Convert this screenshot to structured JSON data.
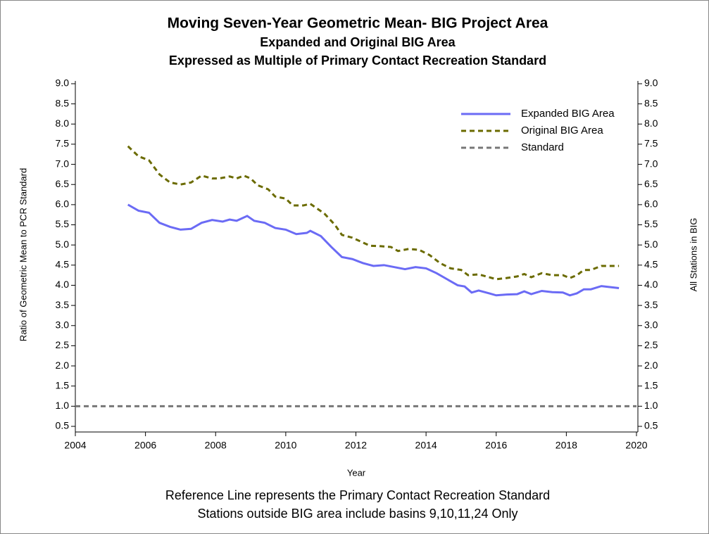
{
  "chart_data": {
    "type": "line",
    "title": "Moving Seven-Year Geometric Mean- BIG Project Area",
    "subtitles": [
      "Expanded and  Original BIG Area",
      "Expressed as Multiple of Primary Contact Recreation Standard"
    ],
    "xlabel": "Year",
    "ylabel": "Ratio of Geometric Mean to PCR Standard",
    "y2label": "All Stations in BIG",
    "footnotes": [
      "Reference Line represents the Primary Contact Recreation Standard",
      "Stations outside BIG area include basins 9,10,11,24 Only"
    ],
    "xlim": [
      2004,
      2020
    ],
    "xticks": [
      2004,
      2006,
      2008,
      2010,
      2012,
      2014,
      2016,
      2018,
      2020
    ],
    "ylim": [
      0.5,
      9
    ],
    "yticks": [
      {
        "value": 0.5,
        "label": "0.5"
      },
      {
        "value": 1,
        "label": "1.0"
      },
      {
        "value": 1.5,
        "label": "1.5"
      },
      {
        "value": 2,
        "label": "2.0"
      },
      {
        "value": 2.5,
        "label": "2.5"
      },
      {
        "value": 3,
        "label": "3.0"
      },
      {
        "value": 3.5,
        "label": "3.5"
      },
      {
        "value": 4,
        "label": "4.0"
      },
      {
        "value": 4.5,
        "label": "4.5"
      },
      {
        "value": 5,
        "label": "5.0"
      },
      {
        "value": 5.5,
        "label": "5.5"
      },
      {
        "value": 6,
        "label": "6.0"
      },
      {
        "value": 6.5,
        "label": "6.5"
      },
      {
        "value": 7,
        "label": "7.0"
      },
      {
        "value": 7.5,
        "label": "7.5"
      },
      {
        "value": 8,
        "label": "8.0"
      },
      {
        "value": 8.5,
        "label": "8.5"
      },
      {
        "value": 9,
        "label": "9.0"
      }
    ],
    "y2lim": [
      0.5,
      9
    ],
    "y2ticks": [
      {
        "value": 0.5,
        "label": "0.5"
      },
      {
        "value": 1,
        "label": "1.0"
      },
      {
        "value": 1.5,
        "label": "1.5"
      },
      {
        "value": 2,
        "label": "2.0"
      },
      {
        "value": 2.5,
        "label": "2.5"
      },
      {
        "value": 3,
        "label": "3.0"
      },
      {
        "value": 3.5,
        "label": "3.5"
      },
      {
        "value": 4,
        "label": "4.0"
      },
      {
        "value": 4.5,
        "label": "4.5"
      },
      {
        "value": 5,
        "label": "5.0"
      },
      {
        "value": 5.5,
        "label": "5.5"
      },
      {
        "value": 6,
        "label": "6.0"
      },
      {
        "value": 6.5,
        "label": "6.5"
      },
      {
        "value": 7,
        "label": "7.0"
      },
      {
        "value": 7.5,
        "label": "7.5"
      },
      {
        "value": 8,
        "label": "8.0"
      },
      {
        "value": 8.5,
        "label": "8.5"
      },
      {
        "value": 9,
        "label": "9.0"
      }
    ],
    "legend": "top-right",
    "series": [
      {
        "name": "Expanded BIG Area",
        "color": "#6b6bf5",
        "dash": "solid",
        "x": [
          2005.5,
          2005.8,
          2006.1,
          2006.4,
          2006.7,
          2007.0,
          2007.3,
          2007.6,
          2007.9,
          2008.2,
          2008.4,
          2008.6,
          2008.9,
          2009.1,
          2009.4,
          2009.7,
          2010.0,
          2010.3,
          2010.6,
          2010.7,
          2011.0,
          2011.3,
          2011.6,
          2011.9,
          2012.2,
          2012.5,
          2012.8,
          2013.1,
          2013.4,
          2013.7,
          2014.0,
          2014.3,
          2014.6,
          2014.9,
          2015.1,
          2015.3,
          2015.5,
          2015.8,
          2016.0,
          2016.3,
          2016.6,
          2016.8,
          2017.0,
          2017.3,
          2017.6,
          2017.9,
          2018.1,
          2018.3,
          2018.5,
          2018.7,
          2019.0,
          2019.3,
          2019.5
        ],
        "values": [
          6.0,
          5.85,
          5.8,
          5.55,
          5.45,
          5.38,
          5.4,
          5.55,
          5.62,
          5.58,
          5.63,
          5.6,
          5.72,
          5.6,
          5.55,
          5.42,
          5.38,
          5.27,
          5.3,
          5.35,
          5.22,
          4.95,
          4.7,
          4.65,
          4.55,
          4.48,
          4.5,
          4.45,
          4.4,
          4.45,
          4.42,
          4.3,
          4.15,
          4.0,
          3.97,
          3.82,
          3.87,
          3.8,
          3.75,
          3.77,
          3.78,
          3.85,
          3.78,
          3.86,
          3.83,
          3.82,
          3.75,
          3.8,
          3.9,
          3.9,
          3.98,
          3.95,
          3.93
        ]
      },
      {
        "name": "Original BIG Area",
        "color": "#6b6b00",
        "dash": "dashed",
        "x": [
          2005.5,
          2005.8,
          2006.1,
          2006.4,
          2006.7,
          2007.0,
          2007.3,
          2007.6,
          2007.9,
          2008.1,
          2008.4,
          2008.6,
          2008.8,
          2009.0,
          2009.2,
          2009.5,
          2009.7,
          2010.0,
          2010.2,
          2010.5,
          2010.7,
          2010.9,
          2011.1,
          2011.4,
          2011.6,
          2011.9,
          2012.1,
          2012.4,
          2012.7,
          2013.0,
          2013.2,
          2013.5,
          2013.8,
          2014.1,
          2014.4,
          2014.7,
          2015.0,
          2015.2,
          2015.5,
          2015.8,
          2016.0,
          2016.3,
          2016.6,
          2016.8,
          2017.0,
          2017.3,
          2017.6,
          2017.9,
          2018.1,
          2018.3,
          2018.5,
          2018.7,
          2019.0,
          2019.3,
          2019.5
        ],
        "values": [
          7.45,
          7.2,
          7.1,
          6.75,
          6.55,
          6.5,
          6.55,
          6.72,
          6.65,
          6.65,
          6.7,
          6.65,
          6.72,
          6.65,
          6.48,
          6.38,
          6.2,
          6.15,
          5.98,
          5.98,
          6.02,
          5.9,
          5.78,
          5.5,
          5.25,
          5.18,
          5.1,
          4.98,
          4.97,
          4.95,
          4.85,
          4.9,
          4.88,
          4.75,
          4.55,
          4.42,
          4.38,
          4.25,
          4.27,
          4.2,
          4.15,
          4.18,
          4.22,
          4.28,
          4.2,
          4.3,
          4.25,
          4.25,
          4.18,
          4.25,
          4.38,
          4.38,
          4.48,
          4.48,
          4.48
        ]
      },
      {
        "name": "Standard",
        "color": "#777777",
        "dash": "dashed",
        "x": [
          2004,
          2020
        ],
        "values": [
          1,
          1
        ]
      }
    ]
  }
}
